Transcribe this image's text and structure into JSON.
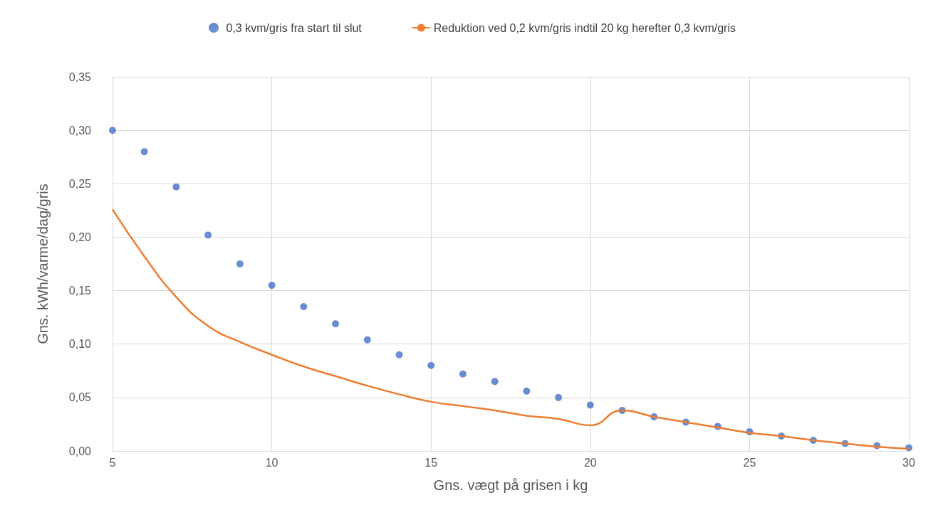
{
  "chart_data": {
    "type": "scatter",
    "xlabel": "Gns. vægt på grisen i kg",
    "ylabel": "Gns. kWh/varme/dag/gris",
    "x": [
      5,
      6,
      7,
      8,
      9,
      10,
      11,
      12,
      13,
      14,
      15,
      16,
      17,
      18,
      19,
      20,
      21,
      22,
      23,
      24,
      25,
      26,
      27,
      28,
      29,
      30
    ],
    "series": [
      {
        "name": "0,3 kvm/gris fra start til slut",
        "marker": "circle",
        "color": "#4472c4",
        "values": [
          0.3,
          0.28,
          0.247,
          0.202,
          0.175,
          0.155,
          0.135,
          0.119,
          0.104,
          0.09,
          0.08,
          0.072,
          0.065,
          0.056,
          0.05,
          0.043,
          0.038,
          0.032,
          0.027,
          0.023,
          0.018,
          0.014,
          0.01,
          0.007,
          0.005,
          0.003
        ]
      },
      {
        "name": "Reduktion ved 0,2 kvm/gris indtil 20 kg herefter 0,3 kvm/gris",
        "type": "line",
        "marker": "none",
        "line_style": "solid",
        "color": "#ed7d31",
        "values": [
          0.226,
          0.182,
          0.144,
          0.117,
          0.102,
          0.09,
          0.079,
          0.07,
          0.061,
          0.053,
          0.046,
          0.042,
          0.038,
          0.033,
          0.03,
          0.024,
          0.038,
          0.032,
          0.027,
          0.022,
          0.017,
          0.014,
          0.01,
          0.007,
          0.004,
          0.002
        ]
      }
    ],
    "xlim": [
      5,
      30
    ],
    "xticks": [
      5,
      10,
      15,
      20,
      25,
      30
    ],
    "ylim": [
      0,
      0.35
    ],
    "yticks": [
      {
        "value": 0,
        "label": "0,00"
      },
      {
        "value": 0.05,
        "label": "0,05"
      },
      {
        "value": 0.1,
        "label": "0,10"
      },
      {
        "value": 0.15,
        "label": "0,15"
      },
      {
        "value": 0.2,
        "label": "0,20"
      },
      {
        "value": 0.25,
        "label": "0,25"
      },
      {
        "value": 0.3,
        "label": "0,30"
      },
      {
        "value": 0.35,
        "label": "0,35"
      }
    ],
    "grid": true,
    "legend": "top"
  }
}
